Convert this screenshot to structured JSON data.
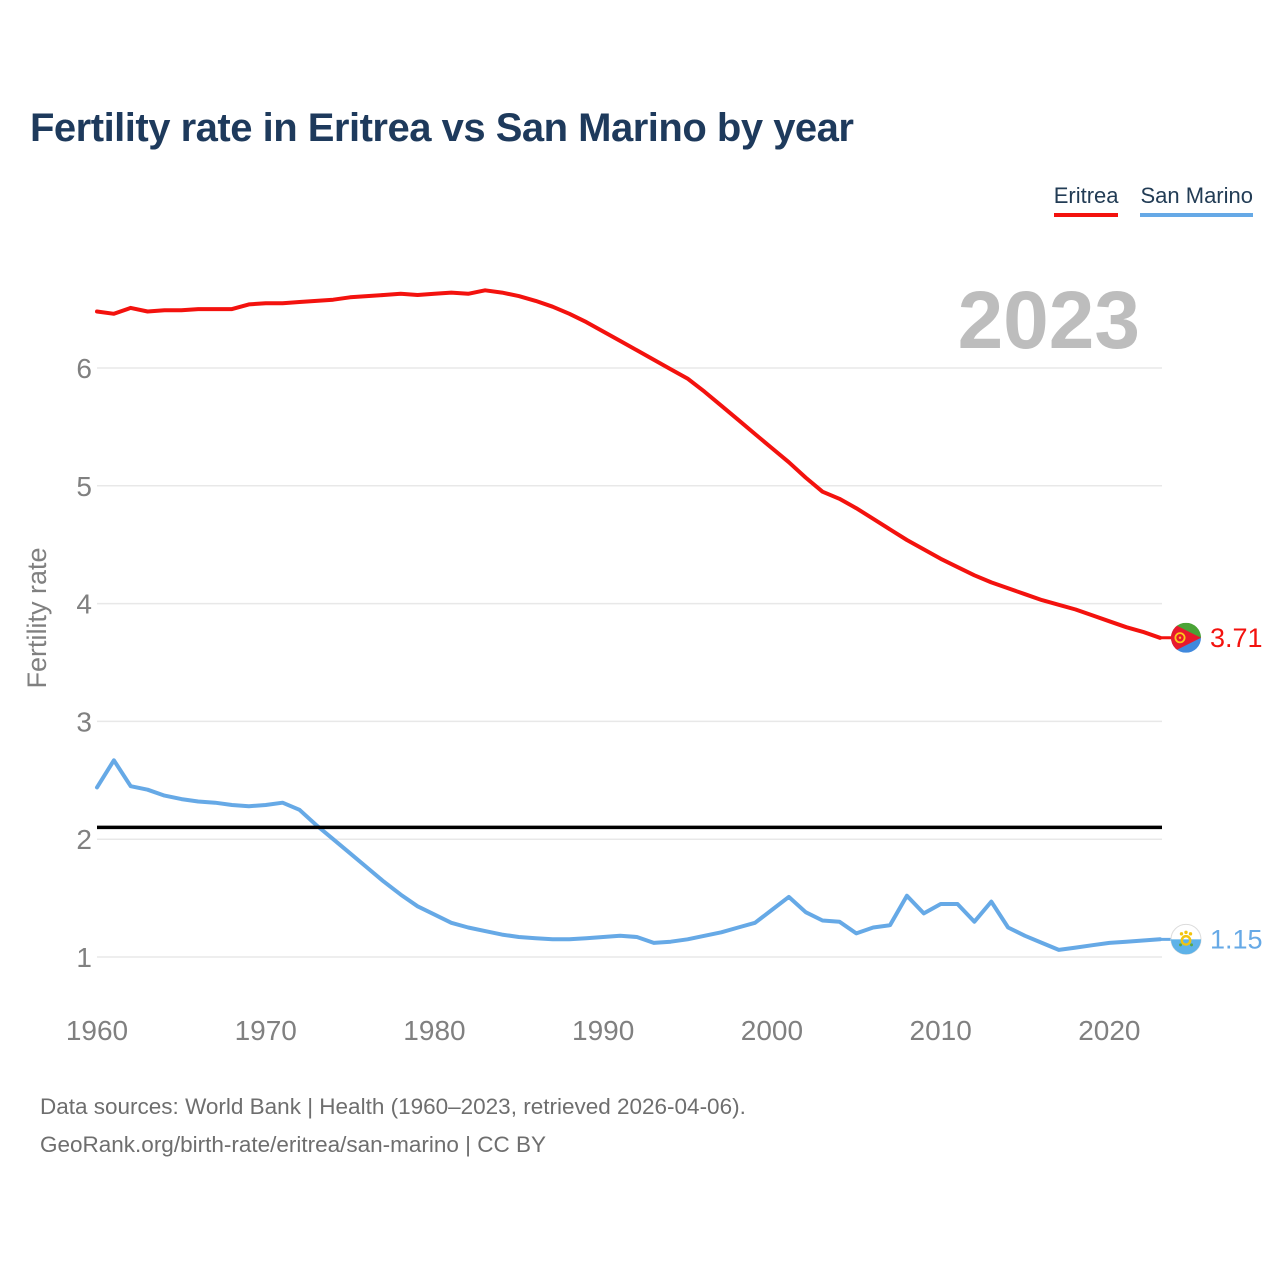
{
  "header": {
    "title": "Fertility rate in Eritrea vs San Marino by year"
  },
  "legend": {
    "eritrea": {
      "label": "Eritrea",
      "color": "#f3120e"
    },
    "san_marino": {
      "label": "San Marino",
      "color": "#66a9e6"
    }
  },
  "watermark_year": "2023",
  "footer": {
    "line1": "Data sources: World Bank | Health (1960–2023, retrieved 2026-04-06).",
    "line2": "GeoRank.org/birth-rate/eritrea/san-marino | CC BY"
  },
  "colors": {
    "title": "#1e3a5c",
    "axis_text": "#808080",
    "gridline": "#e8e8e8",
    "watermark": "#bdbdbd",
    "reference_line": "#000000"
  },
  "flags": {
    "eritrea": {
      "icon": "eritrea-flag-icon",
      "green": "#4aa336",
      "blue": "#4189dd",
      "red": "#e8192d",
      "gold": "#fbc81a"
    },
    "san_marino": {
      "icon": "san-marino-flag-icon",
      "white": "#ffffff",
      "blue": "#5eb2e8",
      "gold": "#f2c40e",
      "green": "#58a846",
      "edge": "#dcdcdc"
    }
  },
  "chart_data": {
    "type": "line",
    "title": "Fertility rate in Eritrea vs San Marino by year",
    "xlabel": "",
    "ylabel": "Fertility rate",
    "x_ticks": [
      1960,
      1970,
      1980,
      1990,
      2000,
      2010,
      2020
    ],
    "y_ticks": [
      1,
      2,
      3,
      4,
      5,
      6
    ],
    "xlim": [
      1960,
      2023
    ],
    "ylim": [
      1,
      6.75
    ],
    "grid": "horizontal",
    "legend_position": "top-right",
    "reference_line": {
      "value": 2.1,
      "color": "#000000",
      "meaning": "replacement-level fertility"
    },
    "x": [
      1960,
      1961,
      1962,
      1963,
      1964,
      1965,
      1966,
      1967,
      1968,
      1969,
      1970,
      1971,
      1972,
      1973,
      1974,
      1975,
      1976,
      1977,
      1978,
      1979,
      1980,
      1981,
      1982,
      1983,
      1984,
      1985,
      1986,
      1987,
      1988,
      1989,
      1990,
      1991,
      1992,
      1993,
      1994,
      1995,
      1996,
      1997,
      1998,
      1999,
      2000,
      2001,
      2002,
      2003,
      2004,
      2005,
      2006,
      2007,
      2008,
      2009,
      2010,
      2011,
      2012,
      2013,
      2014,
      2015,
      2016,
      2017,
      2018,
      2019,
      2020,
      2021,
      2022,
      2023
    ],
    "series": [
      {
        "name": "Eritrea",
        "color": "#f3120e",
        "end_label": "3.71",
        "end_value": 3.71,
        "values": [
          6.48,
          6.46,
          6.51,
          6.48,
          6.49,
          6.49,
          6.5,
          6.5,
          6.5,
          6.54,
          6.55,
          6.55,
          6.56,
          6.57,
          6.58,
          6.6,
          6.61,
          6.62,
          6.63,
          6.62,
          6.63,
          6.64,
          6.63,
          6.66,
          6.64,
          6.61,
          6.57,
          6.52,
          6.46,
          6.39,
          6.31,
          6.23,
          6.15,
          6.07,
          5.99,
          5.91,
          5.8,
          5.68,
          5.56,
          5.44,
          5.32,
          5.2,
          5.07,
          4.95,
          4.89,
          4.81,
          4.72,
          4.63,
          4.54,
          4.46,
          4.38,
          4.31,
          4.24,
          4.18,
          4.13,
          4.08,
          4.03,
          3.99,
          3.95,
          3.9,
          3.85,
          3.8,
          3.76,
          3.71
        ]
      },
      {
        "name": "San Marino",
        "color": "#66a9e6",
        "end_label": "1.15",
        "end_value": 1.15,
        "values": [
          2.44,
          2.67,
          2.45,
          2.42,
          2.37,
          2.34,
          2.32,
          2.31,
          2.29,
          2.28,
          2.29,
          2.31,
          2.25,
          2.12,
          2.0,
          1.88,
          1.76,
          1.64,
          1.53,
          1.43,
          1.36,
          1.29,
          1.25,
          1.22,
          1.19,
          1.17,
          1.16,
          1.15,
          1.15,
          1.16,
          1.17,
          1.18,
          1.17,
          1.12,
          1.13,
          1.15,
          1.18,
          1.21,
          1.25,
          1.29,
          1.4,
          1.51,
          1.38,
          1.31,
          1.3,
          1.2,
          1.25,
          1.27,
          1.52,
          1.37,
          1.45,
          1.45,
          1.3,
          1.47,
          1.25,
          1.18,
          1.12,
          1.06,
          1.08,
          1.1,
          1.12,
          1.13,
          1.14,
          1.15
        ]
      }
    ]
  }
}
